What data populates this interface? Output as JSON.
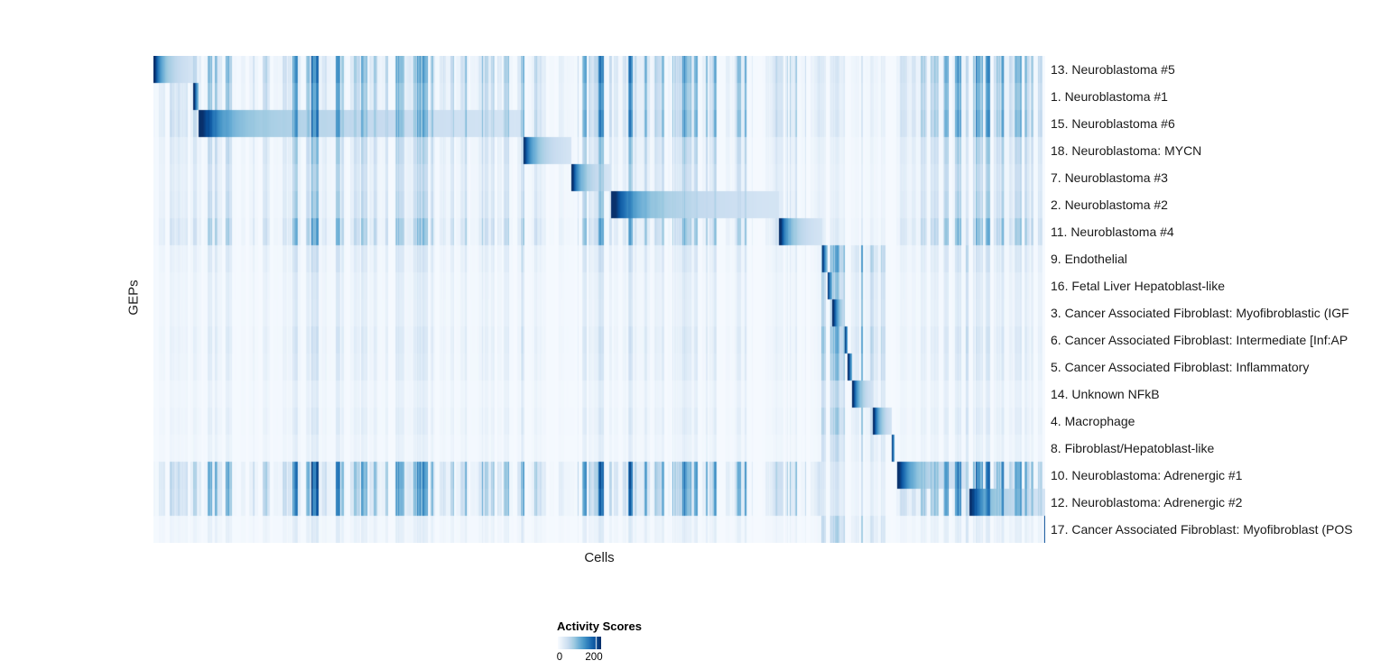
{
  "figure": {
    "xlabel": "Cells",
    "ylabel": "GEPs"
  },
  "legend": {
    "title": "Activity Scores",
    "min_label": "0",
    "tick_label": "200",
    "tick_fraction": 0.85
  },
  "chart_data": {
    "type": "heatmap",
    "title": "",
    "xlabel": "Cells",
    "ylabel": "GEPs",
    "colormap": "Blues",
    "colormap_stops": [
      "#f7fbff",
      "#deebf7",
      "#c6dbef",
      "#9ecae1",
      "#6baed6",
      "#4292c6",
      "#2171b5",
      "#08519c",
      "#08306b"
    ],
    "colorbar": {
      "title": "Activity Scores",
      "tick_values": [
        0,
        200
      ],
      "value_range": [
        0,
        235
      ]
    },
    "x_axis_note": "individual cells ordered by their maximally active GEP; no x tick labels shown",
    "value_note": "each row = one GEP; a diagonal block of high activity (dark blue, ~200) decays left-to-right across that GEP's assigned cells; faint vertical striping elsewhere is low background activity",
    "rows": [
      {
        "label": "13. Neuroblastoma #5",
        "block_start": 0.0,
        "block_end": 0.0445,
        "group": "neuroblastoma"
      },
      {
        "label": "1. Neuroblastoma #1",
        "block_start": 0.0445,
        "block_end": 0.0496,
        "group": "neuroblastoma"
      },
      {
        "label": "15. Neuroblastoma #6",
        "block_start": 0.0506,
        "block_end": 0.413,
        "group": "neuroblastoma"
      },
      {
        "label": "18. Neuroblastoma: MYCN",
        "block_start": 0.414,
        "block_end": 0.4686,
        "group": "neuroblastoma"
      },
      {
        "label": "7. Neuroblastoma #3",
        "block_start": 0.4686,
        "block_end": 0.513,
        "group": "neuroblastoma"
      },
      {
        "label": "2. Neuroblastoma #2",
        "block_start": 0.513,
        "block_end": 0.7014,
        "group": "neuroblastoma"
      },
      {
        "label": "11. Neuroblastoma #4",
        "block_start": 0.7014,
        "block_end": 0.749,
        "group": "neuroblastoma"
      },
      {
        "label": "9. Endothelial",
        "block_start": 0.749,
        "block_end": 0.7551,
        "group": "stromal"
      },
      {
        "label": "16. Fetal Liver Hepatoblast-like",
        "block_start": 0.7551,
        "block_end": 0.7611,
        "group": "stromal"
      },
      {
        "label": "3. Cancer Associated Fibroblast: Myofibroblastic (IGF",
        "block_start": 0.7611,
        "block_end": 0.7743,
        "group": "stromal"
      },
      {
        "label": "6. Cancer Associated Fibroblast: Intermediate [Inf:AP",
        "block_start": 0.7743,
        "block_end": 0.7783,
        "group": "stromal"
      },
      {
        "label": "5. Cancer Associated Fibroblast: Inflammatory",
        "block_start": 0.7783,
        "block_end": 0.7834,
        "group": "stromal"
      },
      {
        "label": "14. Unknown NFkB",
        "block_start": 0.7834,
        "block_end": 0.8066,
        "group": "stromal"
      },
      {
        "label": "4. Macrophage",
        "block_start": 0.8066,
        "block_end": 0.827,
        "group": "stromal"
      },
      {
        "label": "8. Fibroblast/Hepatoblast-like",
        "block_start": 0.827,
        "block_end": 0.83,
        "group": "stromal"
      },
      {
        "label": "10. Neuroblastoma: Adrenergic #1",
        "block_start": 0.833,
        "block_end": 0.911,
        "group": "neuroblastoma"
      },
      {
        "label": "12. Neuroblastoma: Adrenergic #2",
        "block_start": 0.914,
        "block_end": 1.0,
        "group": "neuroblastoma"
      },
      {
        "label": "17. Cancer Associated Fibroblast: Myofibroblast (POS",
        "block_start": 0.998,
        "block_end": 1.0,
        "group": "stromal"
      }
    ]
  }
}
